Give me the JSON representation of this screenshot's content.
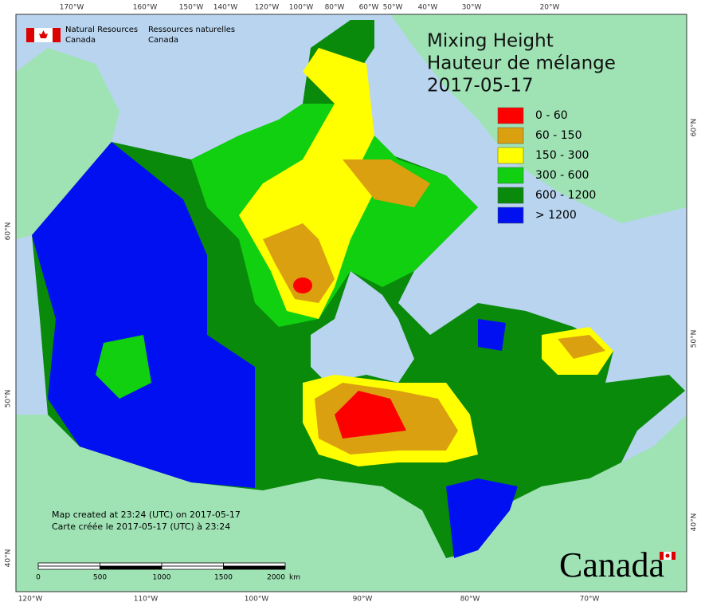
{
  "title": [
    "Mixing Height",
    "Hauteur de mélange",
    "2017-05-17"
  ],
  "legend": [
    {
      "label": "0 - 60",
      "color": "#ff0000"
    },
    {
      "label": "60 - 150",
      "color": "#daa010"
    },
    {
      "label": "150 - 300",
      "color": "#ffff00"
    },
    {
      "label": "300 - 600",
      "color": "#10d010"
    },
    {
      "label": "600 - 1200",
      "color": "#0a8a0a"
    },
    {
      "label": "> 1200",
      "color": "#0010f0"
    }
  ],
  "agency": {
    "en": [
      "Natural Resources",
      "Canada"
    ],
    "fr": [
      "Ressources naturelles",
      "Canada"
    ]
  },
  "notes": [
    "Map created at 23:24 (UTC) on 2017-05-17",
    "Carte créée le 2017-05-17 (UTC) à 23:24"
  ],
  "scale": {
    "ticks": [
      0,
      500,
      1000,
      1500,
      2000
    ],
    "unit": "km"
  },
  "wordmark": "Canada",
  "graticule": {
    "top": [
      "170°W",
      "160°W",
      "150°W",
      "140°W",
      "120°W",
      "100°W",
      "80°W",
      "60°W",
      "50°W",
      "40°W",
      "30°W",
      "20°W"
    ],
    "bottom": [
      "120°W",
      "110°W",
      "100°W",
      "90°W",
      "80°W",
      "70°W"
    ],
    "left": [
      "60°N",
      "50°N",
      "40°N"
    ],
    "right": [
      "60°N",
      "50°N",
      "40°N"
    ]
  }
}
